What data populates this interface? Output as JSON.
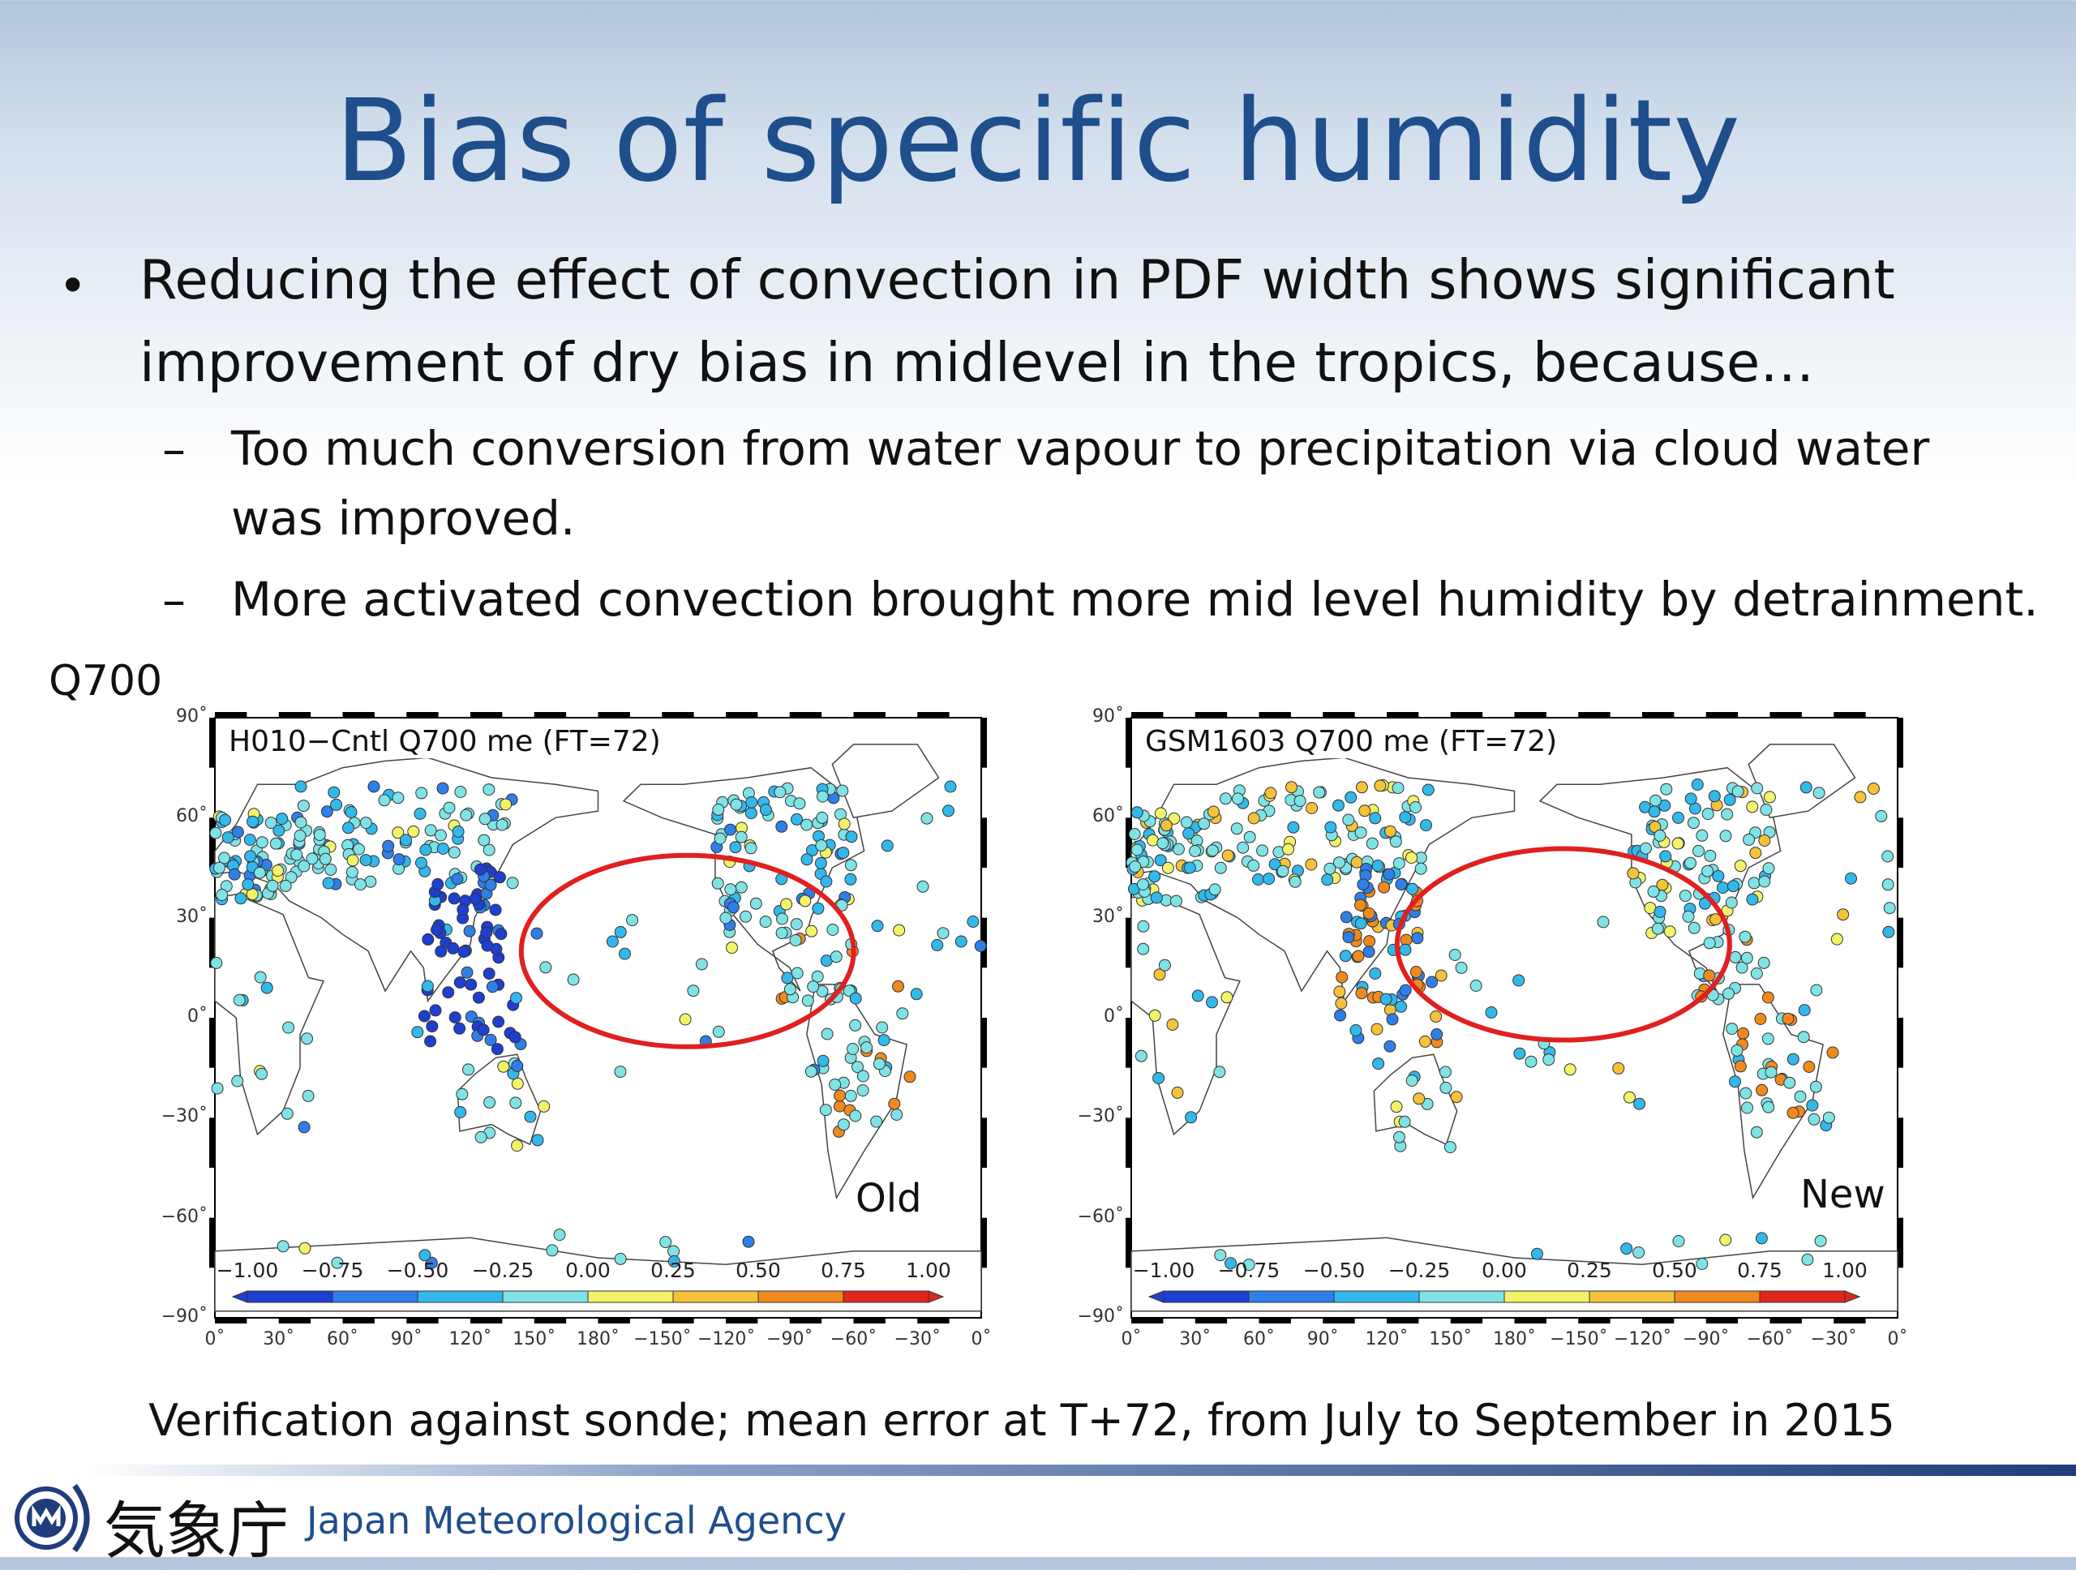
{
  "title": "Bias of specific humidity",
  "bullet": {
    "symbol": "•",
    "text_line1": "Reducing the effect of convection in PDF width shows significant",
    "text_line2": "improvement of dry bias in midlevel in the tropics, because…"
  },
  "sub_bullets": [
    {
      "dash": "–",
      "line1": "Too much conversion from water vapour to precipitation via cloud water",
      "line2": "was improved."
    },
    {
      "dash": "–",
      "line1": "More activated convection brought more mid level humidity by detrainment.",
      "line2": ""
    }
  ],
  "variable_label": "Q700",
  "panels": [
    {
      "title": "H010−Cntl Q700 me (FT=72)",
      "corner_label": "Old"
    },
    {
      "title": "GSM1603 Q700 me (FT=72)",
      "corner_label": "New"
    }
  ],
  "lat_labels": [
    "90˚",
    "60˚",
    "30˚",
    "0˚",
    "−30˚",
    "−60˚",
    "−90˚"
  ],
  "lon_labels": [
    "0˚",
    "30˚",
    "60˚",
    "90˚",
    "120˚",
    "150˚",
    "180˚",
    "−150˚",
    "−120˚",
    "−90˚",
    "−60˚",
    "−30˚",
    "0˚"
  ],
  "colorbar_labels": [
    "−1.00",
    "−0.75",
    "−0.50",
    "−0.25",
    "0.00",
    "0.25",
    "0.50",
    "0.75",
    "1.00"
  ],
  "colorbar_colors": [
    "#1f3fd0",
    "#2f7fe8",
    "#33b8ec",
    "#7fe3e6",
    "#f3f36a",
    "#f5c23a",
    "#f08a1e",
    "#e0261a"
  ],
  "highlight_color": "#e02020",
  "caption": "Verification against sonde; mean error at T+72, from July to September in 2015",
  "footer": {
    "agency_jp": "気象庁",
    "agency_en": "Japan Meteorological Agency",
    "logo_icon": "jma-logo-icon"
  }
}
